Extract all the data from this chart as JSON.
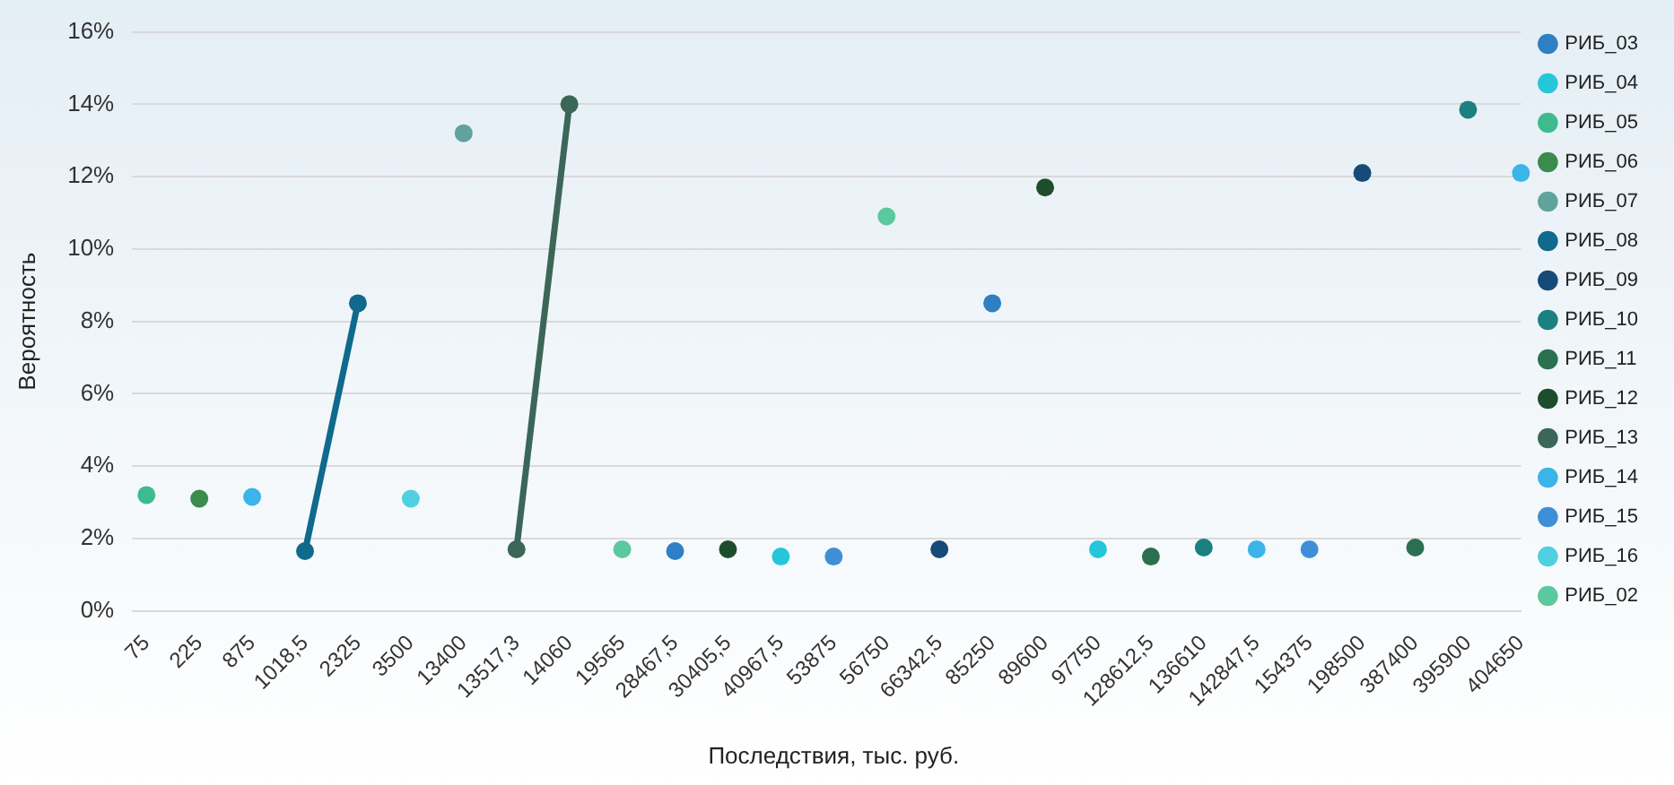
{
  "chart_data": {
    "type": "line",
    "xlabel": "Последствия, тыс. руб.",
    "ylabel": "Вероятность",
    "categories": [
      "75",
      "225",
      "875",
      "1018,5",
      "2325",
      "3500",
      "13400",
      "13517,3",
      "14060",
      "19565",
      "28467,5",
      "30405,5",
      "40967,5",
      "53875",
      "56750",
      "66342,5",
      "85250",
      "89600",
      "97750",
      "128612,5",
      "136610",
      "142847,5",
      "154375",
      "198500",
      "387400",
      "395900",
      "404650"
    ],
    "ylim": [
      0,
      16
    ],
    "yticks": [
      {
        "value": 0,
        "label": "0%"
      },
      {
        "value": 2,
        "label": "2%"
      },
      {
        "value": 4,
        "label": "4%"
      },
      {
        "value": 6,
        "label": "6%"
      },
      {
        "value": 8,
        "label": "8%"
      },
      {
        "value": 10,
        "label": "10%"
      },
      {
        "value": 12,
        "label": "12%"
      },
      {
        "value": 14,
        "label": "14%"
      },
      {
        "value": 16,
        "label": "16%"
      }
    ],
    "grid": "y",
    "legend": "right",
    "marker": "circle",
    "line_style": "solid",
    "series": [
      {
        "name": "РИБ_03",
        "type": "scatter",
        "color": "#2e7fc4",
        "values": [
          null,
          null,
          null,
          null,
          null,
          null,
          null,
          null,
          null,
          null,
          1.65,
          null,
          null,
          null,
          null,
          null,
          8.5,
          null,
          null,
          null,
          null,
          null,
          null,
          null,
          null,
          null,
          null
        ]
      },
      {
        "name": "РИБ_04",
        "type": "scatter",
        "color": "#26c6da",
        "values": [
          null,
          null,
          null,
          null,
          null,
          null,
          null,
          null,
          null,
          null,
          null,
          null,
          1.5,
          null,
          null,
          null,
          null,
          null,
          1.7,
          null,
          null,
          null,
          null,
          null,
          null,
          null,
          null
        ]
      },
      {
        "name": "РИБ_05",
        "color": "#3dbb8f",
        "values": [
          3.2,
          null,
          null,
          null,
          null,
          null,
          null,
          null,
          null,
          null,
          null,
          null,
          null,
          null,
          null,
          null,
          null,
          null,
          null,
          null,
          null,
          null,
          null,
          null,
          null,
          null,
          null
        ]
      },
      {
        "name": "РИБ_06",
        "color": "#3b8a4e",
        "values": [
          null,
          3.1,
          null,
          null,
          null,
          null,
          null,
          null,
          null,
          null,
          null,
          null,
          null,
          null,
          null,
          null,
          null,
          null,
          null,
          null,
          null,
          null,
          null,
          null,
          null,
          null,
          null
        ]
      },
      {
        "name": "РИБ_07",
        "color": "#5fa39c",
        "values": [
          null,
          null,
          null,
          null,
          null,
          null,
          13.2,
          null,
          null,
          null,
          null,
          null,
          null,
          null,
          null,
          null,
          null,
          null,
          null,
          null,
          null,
          null,
          null,
          null,
          null,
          null,
          null
        ]
      },
      {
        "name": "РИБ_08",
        "color": "#0f6a8c",
        "values": [
          null,
          null,
          null,
          1.65,
          8.5,
          null,
          null,
          null,
          null,
          null,
          null,
          null,
          null,
          null,
          null,
          null,
          null,
          null,
          null,
          null,
          null,
          null,
          null,
          null,
          null,
          null,
          null
        ]
      },
      {
        "name": "РИБ_09",
        "type": "scatter",
        "color": "#164a78",
        "values": [
          null,
          null,
          null,
          null,
          null,
          null,
          null,
          null,
          null,
          null,
          null,
          null,
          null,
          null,
          null,
          1.7,
          null,
          null,
          null,
          null,
          null,
          null,
          null,
          12.1,
          null,
          null,
          null
        ]
      },
      {
        "name": "РИБ_10",
        "type": "scatter",
        "color": "#1a8080",
        "values": [
          null,
          null,
          null,
          null,
          null,
          null,
          null,
          null,
          null,
          null,
          null,
          null,
          null,
          null,
          null,
          null,
          null,
          null,
          null,
          null,
          1.75,
          null,
          null,
          null,
          null,
          13.85,
          null
        ]
      },
      {
        "name": "РИБ_11",
        "type": "scatter",
        "color": "#2a7050",
        "values": [
          null,
          null,
          null,
          null,
          null,
          null,
          null,
          null,
          null,
          null,
          null,
          null,
          null,
          null,
          null,
          null,
          null,
          null,
          null,
          1.5,
          null,
          null,
          null,
          null,
          1.75,
          null,
          null
        ]
      },
      {
        "name": "РИБ_12",
        "type": "scatter",
        "color": "#1e4d2b",
        "values": [
          null,
          null,
          null,
          null,
          null,
          null,
          null,
          null,
          null,
          null,
          null,
          1.7,
          null,
          null,
          null,
          null,
          null,
          11.7,
          null,
          null,
          null,
          null,
          null,
          null,
          null,
          null,
          null
        ]
      },
      {
        "name": "РИБ_13",
        "color": "#3c6658",
        "values": [
          null,
          null,
          null,
          null,
          null,
          null,
          null,
          1.7,
          14.0,
          null,
          null,
          null,
          null,
          null,
          null,
          null,
          null,
          null,
          null,
          null,
          null,
          null,
          null,
          null,
          null,
          null,
          null
        ]
      },
      {
        "name": "РИБ_14",
        "type": "scatter",
        "color": "#3bb4e8",
        "values": [
          null,
          null,
          3.15,
          null,
          null,
          null,
          null,
          null,
          null,
          null,
          null,
          null,
          null,
          null,
          null,
          null,
          null,
          null,
          null,
          null,
          null,
          1.7,
          null,
          null,
          null,
          null,
          12.1
        ]
      },
      {
        "name": "РИБ_15",
        "type": "scatter",
        "color": "#3f8fd8",
        "values": [
          null,
          null,
          null,
          null,
          null,
          null,
          null,
          null,
          null,
          null,
          null,
          null,
          null,
          1.5,
          null,
          null,
          null,
          null,
          null,
          null,
          null,
          null,
          1.7,
          null,
          null,
          null,
          null
        ]
      },
      {
        "name": "РИБ_16",
        "color": "#4fd0e0",
        "values": [
          null,
          null,
          null,
          null,
          null,
          3.1,
          null,
          null,
          null,
          null,
          null,
          null,
          null,
          null,
          null,
          null,
          null,
          null,
          null,
          null,
          null,
          null,
          null,
          null,
          null,
          null,
          null
        ]
      },
      {
        "name": "РИБ_02",
        "type": "scatter",
        "color": "#5cc8a0",
        "values": [
          null,
          null,
          null,
          null,
          null,
          null,
          null,
          null,
          null,
          1.7,
          null,
          null,
          null,
          null,
          10.9,
          null,
          null,
          null,
          null,
          null,
          null,
          null,
          null,
          null,
          null,
          null,
          null
        ]
      }
    ]
  }
}
